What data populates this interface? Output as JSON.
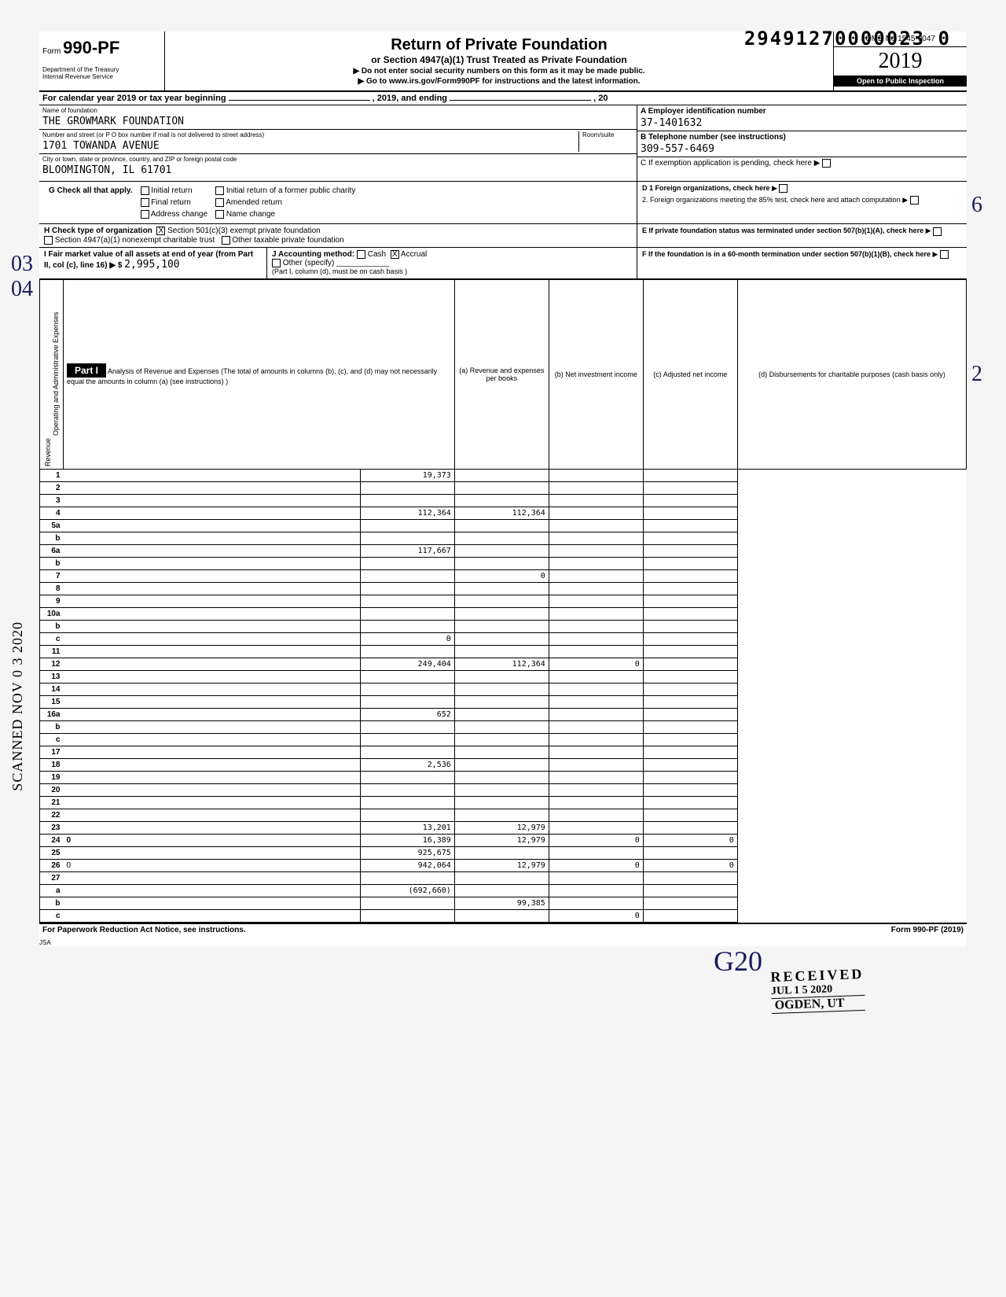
{
  "dln": "29491270000023  0",
  "form": {
    "prefix": "Form",
    "number": "990-PF",
    "dept1": "Department of the Treasury",
    "dept2": "Internal Revenue Service"
  },
  "title": {
    "main": "Return of Private Foundation",
    "sub": "or Section 4947(a)(1) Trust Treated as Private Foundation",
    "note1": "▶ Do not enter social security numbers on this form as it may be made public.",
    "note2": "▶ Go to www.irs.gov/Form990PF for instructions and the latest information."
  },
  "omb": "OMB No 1545-0047",
  "year": "2019",
  "inspection": "Open to Public Inspection",
  "cal_row": {
    "left": "For calendar year 2019 or tax year beginning",
    "mid": ", 2019, and ending",
    "right": ", 20"
  },
  "entity": {
    "name_label": "Name of foundation",
    "name": "THE GROWMARK FOUNDATION",
    "addr_label": "Number and street (or P O box number if mail is not delivered to street address)",
    "room_label": "Room/suite",
    "addr": "1701 TOWANDA AVENUE",
    "city_label": "City or town, state or province, country, and ZIP or foreign postal code",
    "city": "BLOOMINGTON, IL 61701",
    "ein_label": "A  Employer identification number",
    "ein": "37-1401632",
    "phone_label": "B  Telephone number (see instructions)",
    "phone": "309-557-6469",
    "c_label": "C  If exemption application is pending, check here ▶"
  },
  "boxG": {
    "label": "G  Check all that apply.",
    "opts": [
      "Initial return",
      "Initial return of a former public charity",
      "Final return",
      "Amended return",
      "Address change",
      "Name change"
    ]
  },
  "boxD": {
    "d1": "D  1 Foreign organizations, check here",
    "d2": "2. Foreign organizations meeting the 85% test, check here and attach computation"
  },
  "boxH": {
    "label": "H  Check type of organization",
    "opt1": "Section 501(c)(3) exempt private foundation",
    "opt2": "Section 4947(a)(1) nonexempt charitable trust",
    "opt3": "Other taxable private foundation"
  },
  "boxE": "E  If private foundation status was terminated under section 507(b)(1)(A), check here",
  "boxI": {
    "label": "I   Fair market value of all assets at end of year (from Part II, col (c), line 16) ▶ $",
    "value": "2,995,100",
    "j_label": "J  Accounting method:",
    "cash": "Cash",
    "accrual": "Accrual",
    "other": "Other (specify)",
    "note": "(Part I, column (d), must be on cash basis )"
  },
  "boxF": "F  If the foundation is in a 60-month termination under section 507(b)(1)(B), check here",
  "part1": {
    "label": "Part I",
    "desc": "Analysis of Revenue and Expenses (The total of amounts in columns (b), (c), and (d) may not necessarily equal the amounts in column (a) (see instructions) )",
    "col_a": "(a) Revenue and expenses per books",
    "col_b": "(b) Net investment income",
    "col_c": "(c) Adjusted net income",
    "col_d": "(d) Disbursements for charitable purposes (cash basis only)"
  },
  "side_labels": {
    "revenue": "Revenue",
    "expenses": "Operating and Administrative Expenses"
  },
  "lines": [
    {
      "n": "1",
      "d": "",
      "a": "19,373",
      "b": "",
      "c": ""
    },
    {
      "n": "2",
      "d": "",
      "a": "",
      "b": "",
      "c": ""
    },
    {
      "n": "3",
      "d": "",
      "a": "",
      "b": "",
      "c": ""
    },
    {
      "n": "4",
      "d": "",
      "a": "112,364",
      "b": "112,364",
      "c": ""
    },
    {
      "n": "5a",
      "d": "",
      "a": "",
      "b": "",
      "c": ""
    },
    {
      "n": "b",
      "d": "",
      "a": "",
      "b": "",
      "c": ""
    },
    {
      "n": "6a",
      "d": "",
      "a": "117,667",
      "b": "",
      "c": ""
    },
    {
      "n": "b",
      "d": "",
      "a": "",
      "b": "",
      "c": ""
    },
    {
      "n": "7",
      "d": "",
      "a": "",
      "b": "0",
      "c": ""
    },
    {
      "n": "8",
      "d": "",
      "a": "",
      "b": "",
      "c": ""
    },
    {
      "n": "9",
      "d": "",
      "a": "",
      "b": "",
      "c": ""
    },
    {
      "n": "10a",
      "d": "",
      "a": "",
      "b": "",
      "c": ""
    },
    {
      "n": "b",
      "d": "",
      "a": "",
      "b": "",
      "c": ""
    },
    {
      "n": "c",
      "d": "",
      "a": "0",
      "b": "",
      "c": ""
    },
    {
      "n": "11",
      "d": "",
      "a": "",
      "b": "",
      "c": ""
    },
    {
      "n": "12",
      "d": "",
      "a": "249,404",
      "b": "112,364",
      "c": "0",
      "bold": true
    },
    {
      "n": "13",
      "d": "",
      "a": "",
      "b": "",
      "c": ""
    },
    {
      "n": "14",
      "d": "",
      "a": "",
      "b": "",
      "c": ""
    },
    {
      "n": "15",
      "d": "",
      "a": "",
      "b": "",
      "c": ""
    },
    {
      "n": "16a",
      "d": "",
      "a": "652",
      "b": "",
      "c": ""
    },
    {
      "n": "b",
      "d": "",
      "a": "",
      "b": "",
      "c": ""
    },
    {
      "n": "c",
      "d": "",
      "a": "",
      "b": "",
      "c": ""
    },
    {
      "n": "17",
      "d": "",
      "a": "",
      "b": "",
      "c": ""
    },
    {
      "n": "18",
      "d": "",
      "a": "2,536",
      "b": "",
      "c": ""
    },
    {
      "n": "19",
      "d": "",
      "a": "",
      "b": "",
      "c": ""
    },
    {
      "n": "20",
      "d": "",
      "a": "",
      "b": "",
      "c": ""
    },
    {
      "n": "21",
      "d": "",
      "a": "",
      "b": "",
      "c": ""
    },
    {
      "n": "22",
      "d": "",
      "a": "",
      "b": "",
      "c": ""
    },
    {
      "n": "23",
      "d": "",
      "a": "13,201",
      "b": "12,979",
      "c": ""
    },
    {
      "n": "24",
      "d": "0",
      "a": "16,389",
      "b": "12,979",
      "c": "0",
      "bold": true
    },
    {
      "n": "25",
      "d": "",
      "a": "925,675",
      "b": "",
      "c": ""
    },
    {
      "n": "26",
      "d": "0",
      "a": "942,064",
      "b": "12,979",
      "c": "0"
    },
    {
      "n": "27",
      "d": "",
      "a": "",
      "b": "",
      "c": ""
    },
    {
      "n": "a",
      "d": "",
      "a": "(692,660)",
      "b": "",
      "c": "",
      "bold": true
    },
    {
      "n": "b",
      "d": "",
      "a": "",
      "b": "99,385",
      "c": "",
      "bold": true
    },
    {
      "n": "c",
      "d": "",
      "a": "",
      "b": "",
      "c": "0",
      "bold": true
    }
  ],
  "footer": {
    "left": "For Paperwork Reduction Act Notice, see instructions.",
    "right": "Form 990-PF (2019)",
    "jsa": "JSA"
  },
  "stamps": {
    "scanned": "SCANNED  NOV 0 3 2020",
    "received": "RECEIVED",
    "rec_date": "JUL 1 5 2020",
    "rec_loc": "OGDEN, UT",
    "hand_0304": "03\n04",
    "hand_6": "6",
    "hand_2": "2",
    "hand_g20": "G20"
  }
}
